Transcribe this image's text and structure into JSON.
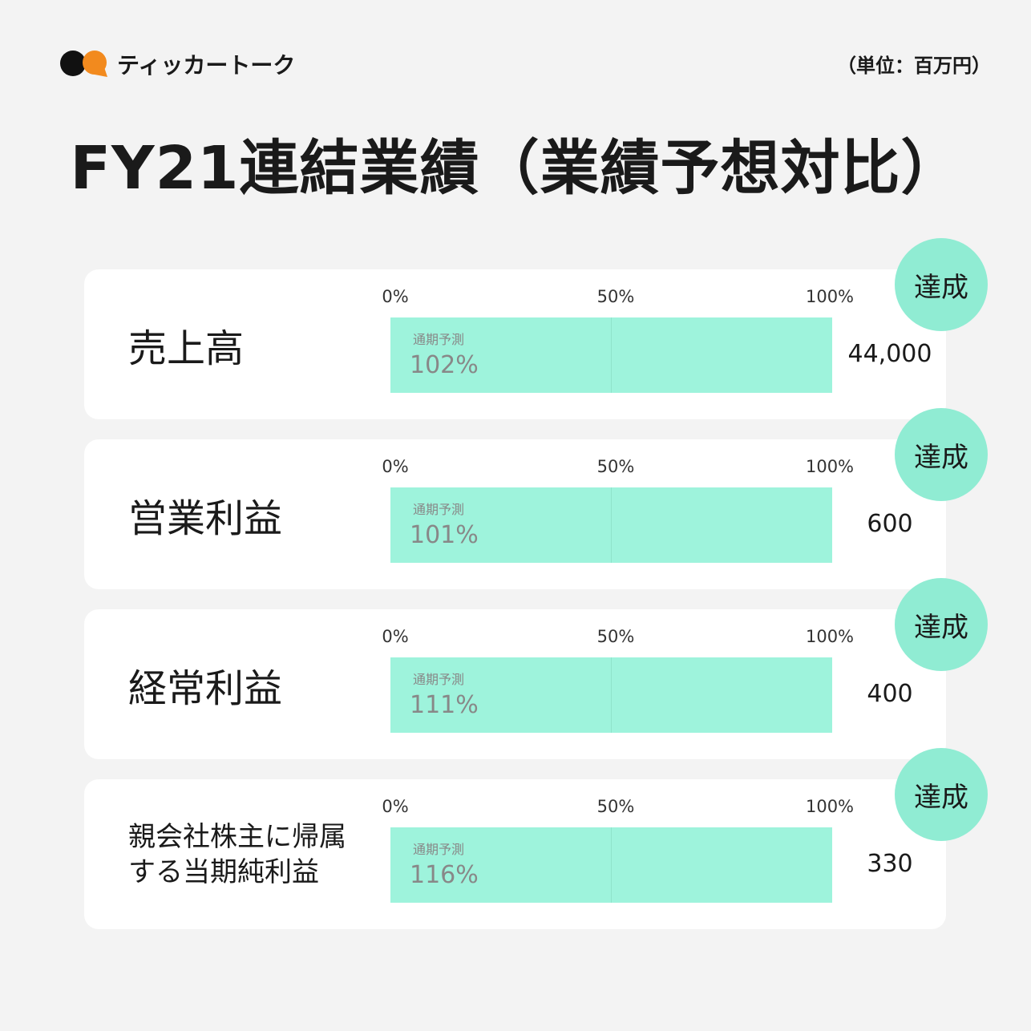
{
  "header": {
    "brand": "ティッカートーク",
    "unit": "（単位：百万円）",
    "title": "FY21連結業績（業績予想対比）"
  },
  "scale_labels": [
    "0%",
    "50%",
    "100%"
  ],
  "rows": [
    {
      "label": [
        "売上高"
      ],
      "bar_label": "通期予測",
      "ratio": "102%",
      "amount": "44,000",
      "badge": "達成"
    },
    {
      "label": [
        "営業利益"
      ],
      "bar_label": "通期予測",
      "ratio": "101%",
      "amount": "600",
      "badge": "達成"
    },
    {
      "label": [
        "経常利益"
      ],
      "bar_label": "通期予測",
      "ratio": "111%",
      "amount": "400",
      "badge": "達成"
    },
    {
      "label": [
        "親会社株主に帰属",
        "する当期純利益"
      ],
      "bar_label": "通期予測",
      "ratio": "116%",
      "amount": "330",
      "badge": "達成"
    }
  ]
}
